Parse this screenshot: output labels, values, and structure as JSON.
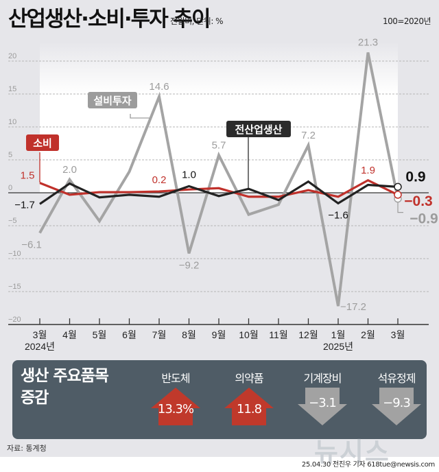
{
  "header": {
    "title": "산업생산·소비·투자 추이",
    "subtitle": "전월비, 단위: %",
    "base_note": "100=2020년"
  },
  "chart_data": {
    "type": "line",
    "title": "산업생산·소비·투자 추이",
    "subtitle": "전월비, 단위: %",
    "note": "100=2020년",
    "x": [
      "3월",
      "4월",
      "5월",
      "6월",
      "7월",
      "8월",
      "9월",
      "10월",
      "11월",
      "12월",
      "1월",
      "2월",
      "3월"
    ],
    "year_labels": [
      {
        "index": 0,
        "label": "2024년"
      },
      {
        "index": 10,
        "label": "2025년"
      }
    ],
    "xlabel": "",
    "ylabel": "%",
    "ylim": [
      -20,
      20
    ],
    "yticks": [
      20,
      15,
      10,
      5,
      0,
      -5,
      -10,
      -15,
      -20
    ],
    "grid": true,
    "series": [
      {
        "name": "설비투자",
        "color": "#a4a4a4",
        "values": [
          -6.1,
          2.0,
          -4.3,
          3.2,
          14.6,
          -9.2,
          5.7,
          -3.3,
          -1.8,
          7.2,
          -17.2,
          21.3,
          -0.9
        ],
        "labels": [
          {
            "i": 0,
            "text": "-6.1"
          },
          {
            "i": 1,
            "text": "2.0"
          },
          {
            "i": 4,
            "text": "14.6"
          },
          {
            "i": 5,
            "text": "-9.2"
          },
          {
            "i": 6,
            "text": "5.7"
          },
          {
            "i": 9,
            "text": "7.2"
          },
          {
            "i": 10,
            "text": "-17.2"
          },
          {
            "i": 11,
            "text": "21.3"
          },
          {
            "i": 12,
            "text": "-0.9"
          }
        ]
      },
      {
        "name": "소비",
        "color": "#c0312b",
        "values": [
          1.5,
          -0.3,
          0.1,
          0.1,
          0.2,
          0.5,
          0.7,
          -0.6,
          -0.6,
          0.4,
          -0.6,
          1.9,
          -0.3
        ],
        "labels": [
          {
            "i": 0,
            "text": "1.5"
          },
          {
            "i": 4,
            "text": "0.2"
          },
          {
            "i": 11,
            "text": "1.9"
          },
          {
            "i": 12,
            "text": "-0.3"
          }
        ]
      },
      {
        "name": "전산업생산",
        "color": "#222222",
        "values": [
          -1.7,
          1.4,
          -0.7,
          -0.3,
          -0.6,
          1.0,
          -0.5,
          0.6,
          -1.1,
          1.7,
          -1.6,
          1.2,
          0.9
        ],
        "labels": [
          {
            "i": 0,
            "text": "-1.7"
          },
          {
            "i": 5,
            "text": "1.0"
          },
          {
            "i": 10,
            "text": "-1.6"
          },
          {
            "i": 12,
            "text": "0.9"
          }
        ]
      }
    ],
    "legend_tags": [
      {
        "series": "설비투자",
        "text": "설비투자"
      },
      {
        "series": "소비",
        "text": "소비"
      },
      {
        "series": "전산업생산",
        "text": "전산업생산"
      }
    ]
  },
  "panel": {
    "title_line1": "생산 주요품목",
    "title_line2": "증감",
    "items": [
      {
        "label": "반도체",
        "value": "13.3%",
        "direction": "up",
        "color": "#c0392b"
      },
      {
        "label": "의약품",
        "value": "11.8",
        "direction": "up",
        "color": "#c0392b"
      },
      {
        "label": "기계장비",
        "value": "−3.1",
        "direction": "down",
        "color": "#a2a2a2"
      },
      {
        "label": "석유정제",
        "value": "−9.3",
        "direction": "down",
        "color": "#a2a2a2"
      }
    ]
  },
  "footer": {
    "source": "자료: 통계청",
    "credit": "25.04.30 전진우 기자 618tue@newsis.com",
    "watermark": "뉴시스"
  }
}
